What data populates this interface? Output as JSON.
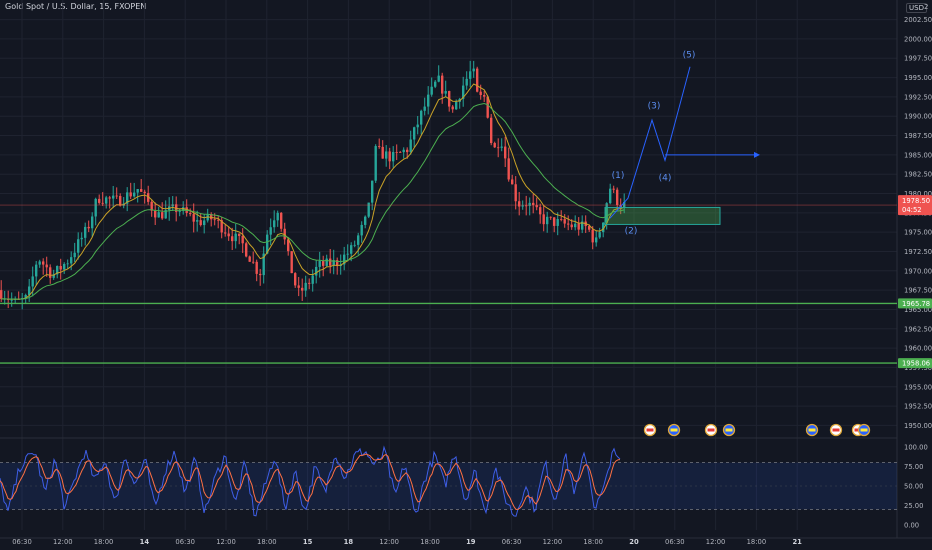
{
  "header": {
    "title": "Gold Spot / U.S. Dollar, 15, FXOPEN",
    "currency": "USD",
    "top_value": "2"
  },
  "colors": {
    "background": "#131722",
    "grid": "#1f2330",
    "up": "#26a69a",
    "down": "#ef5350",
    "ma_fast": "#c9a227",
    "ma_slow": "#4caf50",
    "level": "#4caf50",
    "wave": "#2962ff",
    "stoch_k": "#3e5ee7",
    "stoch_d": "#ff7043"
  },
  "price_axis": {
    "ticks": [
      "2002.50",
      "2000.00",
      "1997.50",
      "1995.00",
      "1992.50",
      "1990.00",
      "1987.50",
      "1985.00",
      "1982.50",
      "1980.00",
      "1977.50",
      "1975.00",
      "1972.50",
      "1970.00",
      "1967.50",
      "1965.00",
      "1962.50",
      "1960.00",
      "1957.50",
      "1955.00",
      "1952.50",
      "1950.00"
    ],
    "current_price": "1978.50",
    "countdown": "04:52",
    "levels": [
      {
        "label": "1965.78",
        "value": 1965.78
      },
      {
        "label": "1958.06",
        "value": 1958.06
      }
    ]
  },
  "stoch_axis": {
    "ticks": [
      "100.00",
      "75.00",
      "50.00",
      "25.00",
      "0.00"
    ]
  },
  "time_axis": {
    "ticks": [
      "06:30",
      "12:00",
      "18:00",
      "14",
      "06:30",
      "12:00",
      "18:00",
      "15",
      "18",
      "12:00",
      "18:00",
      "19",
      "06:30",
      "12:00",
      "18:00",
      "20",
      "06:30",
      "12:00",
      "18:00",
      "21"
    ]
  },
  "wave_labels": [
    "(1)",
    "(2)",
    "(3)",
    "(4)",
    "(5)"
  ],
  "event_icons": [
    "us-flag-event",
    "eu-event",
    "us-flag-event",
    "eu-event",
    "eu-event",
    "us-flag-event",
    "us-flag-event",
    "eu-event"
  ],
  "chart_data": {
    "type": "candlestick",
    "title": "Gold Spot / U.S. Dollar, 15, FXOPEN",
    "y_range": [
      1948.5,
      2004.0
    ],
    "price_anchors": [
      [
        0,
        1967.5
      ],
      [
        18,
        1965.8
      ],
      [
        30,
        1966.5
      ],
      [
        40,
        1971.8
      ],
      [
        55,
        1969.4
      ],
      [
        70,
        1971.3
      ],
      [
        90,
        1975.5
      ],
      [
        100,
        1979.5
      ],
      [
        120,
        1979.0
      ],
      [
        140,
        1980.6
      ],
      [
        160,
        1977.2
      ],
      [
        180,
        1978.1
      ],
      [
        200,
        1976.3
      ],
      [
        215,
        1976.8
      ],
      [
        230,
        1975.0
      ],
      [
        245,
        1973.4
      ],
      [
        262,
        1969.5
      ],
      [
        270,
        1975.2
      ],
      [
        280,
        1978.1
      ],
      [
        290,
        1972.0
      ],
      [
        300,
        1967.0
      ],
      [
        310,
        1968.2
      ],
      [
        320,
        1970.6
      ],
      [
        340,
        1971.1
      ],
      [
        355,
        1972.9
      ],
      [
        370,
        1977.1
      ],
      [
        378,
        1985.5
      ],
      [
        395,
        1984.6
      ],
      [
        410,
        1985.8
      ],
      [
        425,
        1990.7
      ],
      [
        440,
        1994.8
      ],
      [
        455,
        1990.8
      ],
      [
        465,
        1993.9
      ],
      [
        475,
        1996.2
      ],
      [
        480,
        1992.3
      ],
      [
        488,
        1992.5
      ],
      [
        495,
        1985.2
      ],
      [
        503,
        1987.4
      ],
      [
        512,
        1982.0
      ],
      [
        520,
        1978.7
      ],
      [
        530,
        1978.8
      ],
      [
        545,
        1976.6
      ],
      [
        560,
        1976.2
      ],
      [
        575,
        1975.8
      ],
      [
        590,
        1975.6
      ],
      [
        598,
        1973.5
      ],
      [
        606,
        1977.0
      ],
      [
        612,
        1980.9
      ],
      [
        620,
        1979.0
      ],
      [
        624,
        1978.5
      ]
    ],
    "stoch_anchors": [
      [
        0,
        55
      ],
      [
        8,
        15
      ],
      [
        20,
        75
      ],
      [
        35,
        95
      ],
      [
        45,
        40
      ],
      [
        55,
        85
      ],
      [
        65,
        20
      ],
      [
        75,
        60
      ],
      [
        85,
        95
      ],
      [
        95,
        55
      ],
      [
        105,
        85
      ],
      [
        115,
        25
      ],
      [
        125,
        90
      ],
      [
        135,
        50
      ],
      [
        145,
        85
      ],
      [
        155,
        20
      ],
      [
        165,
        70
      ],
      [
        175,
        95
      ],
      [
        185,
        40
      ],
      [
        195,
        85
      ],
      [
        205,
        15
      ],
      [
        215,
        60
      ],
      [
        225,
        90
      ],
      [
        235,
        25
      ],
      [
        245,
        80
      ],
      [
        255,
        10
      ],
      [
        265,
        50
      ],
      [
        275,
        90
      ],
      [
        285,
        20
      ],
      [
        295,
        70
      ],
      [
        305,
        15
      ],
      [
        315,
        75
      ],
      [
        325,
        40
      ],
      [
        335,
        95
      ],
      [
        345,
        60
      ],
      [
        355,
        90
      ],
      [
        365,
        95
      ],
      [
        375,
        75
      ],
      [
        385,
        95
      ],
      [
        395,
        35
      ],
      [
        405,
        80
      ],
      [
        415,
        10
      ],
      [
        425,
        60
      ],
      [
        435,
        90
      ],
      [
        445,
        50
      ],
      [
        455,
        95
      ],
      [
        465,
        30
      ],
      [
        475,
        70
      ],
      [
        485,
        15
      ],
      [
        495,
        75
      ],
      [
        505,
        35
      ],
      [
        515,
        10
      ],
      [
        525,
        50
      ],
      [
        535,
        20
      ],
      [
        545,
        80
      ],
      [
        555,
        30
      ],
      [
        565,
        90
      ],
      [
        575,
        40
      ],
      [
        585,
        95
      ],
      [
        595,
        20
      ],
      [
        605,
        50
      ],
      [
        612,
        95
      ],
      [
        620,
        80
      ]
    ],
    "stoch_bands": [
      80,
      20
    ],
    "projection": {
      "zone": [
        1976.0,
        1978.2
      ],
      "zone_x": [
        605,
        720
      ],
      "wave_path": [
        [
          610,
          1976.8
        ],
        [
          628,
          1979.4
        ],
        [
          652,
          1989.5
        ],
        [
          665,
          1984.3
        ],
        [
          690,
          1996.4
        ]
      ],
      "target": [
        [
          665,
          1985.0
        ],
        [
          760,
          1985.0
        ]
      ],
      "wave_points": [
        [
          618,
          1982.0
        ],
        [
          631,
          1974.8
        ],
        [
          654,
          1991.0
        ],
        [
          665,
          1981.7
        ],
        [
          689,
          1997.6
        ]
      ]
    },
    "ma_fast_period": 8,
    "ma_slow_period": 21
  }
}
